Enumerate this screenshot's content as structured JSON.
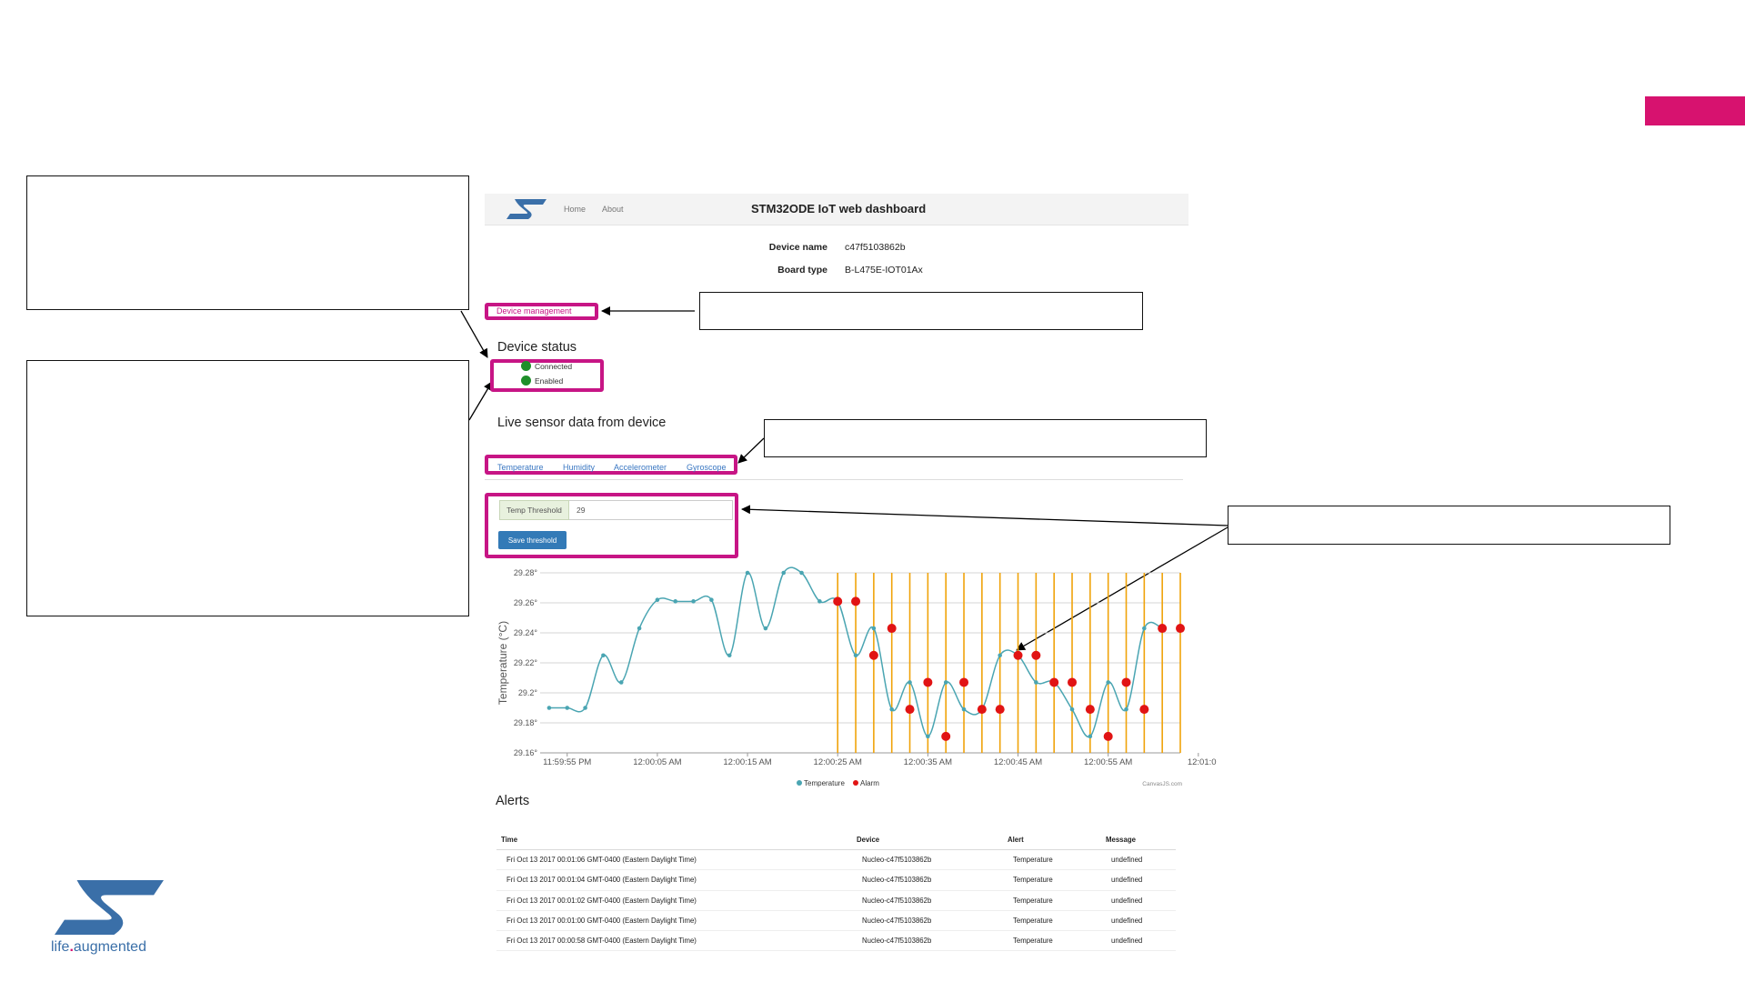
{
  "dashboard": {
    "nav": {
      "home": "Home",
      "about": "About"
    },
    "title": "STM32ODE IoT web dashboard"
  },
  "device_info": {
    "name_label": "Device name",
    "name_value": "c47f5103862b",
    "board_label": "Board type",
    "board_value": "B-L475E-IOT01Ax"
  },
  "device_management_link": "Device management",
  "device_status": {
    "heading": "Device status",
    "items": [
      "Connected",
      "Enabled"
    ],
    "color": "#1f8f2a"
  },
  "live_sensor": {
    "heading": "Live sensor data from device",
    "tabs": [
      "Temperature",
      "Humidity",
      "Accelerometer",
      "Gyroscope"
    ]
  },
  "threshold": {
    "label": "Temp Threshold",
    "value": "29",
    "button": "Save threshold"
  },
  "chart_data": {
    "type": "line",
    "ylabel": "Temperature (°C)",
    "ylim": [
      29.16,
      29.28
    ],
    "xlim": [
      "11:59:52 PM",
      "12:01:03 AM"
    ],
    "yticks": [
      "29.16°",
      "29.18°",
      "29.2°",
      "29.22°",
      "29.24°",
      "29.26°",
      "29.28°"
    ],
    "xticks": [
      "11:59:55 PM",
      "12:00:05 AM",
      "12:00:15 AM",
      "12:00:25 AM",
      "12:00:35 AM",
      "12:00:45 AM",
      "12:00:55 AM",
      "12:01:0"
    ],
    "credit": "CanvasJS.com",
    "series": [
      {
        "name": "Temperature",
        "color": "#4aa5b2",
        "x": [
          "11:59:53 PM",
          "11:59:55 PM",
          "11:59:57 PM",
          "11:59:59 PM",
          "12:00:01 AM",
          "12:00:03 AM",
          "12:00:05 AM",
          "12:00:07 AM",
          "12:00:09 AM",
          "12:00:11 AM",
          "12:00:13 AM",
          "12:00:15 AM",
          "12:00:17 AM",
          "12:00:19 AM",
          "12:00:21 AM",
          "12:00:23 AM",
          "12:00:25 AM",
          "12:00:27 AM",
          "12:00:29 AM",
          "12:00:31 AM",
          "12:00:33 AM",
          "12:00:35 AM",
          "12:00:37 AM",
          "12:00:39 AM",
          "12:00:41 AM",
          "12:00:43 AM",
          "12:00:45 AM",
          "12:00:47 AM",
          "12:00:49 AM",
          "12:00:51 AM",
          "12:00:53 AM",
          "12:00:55 AM",
          "12:00:57 AM",
          "12:00:59 AM",
          "12:01:01 AM"
        ],
        "y": [
          29.19,
          29.19,
          29.19,
          29.225,
          29.207,
          29.243,
          29.262,
          29.261,
          29.261,
          29.262,
          29.225,
          29.28,
          29.243,
          29.28,
          29.28,
          29.261,
          29.261,
          29.225,
          29.243,
          29.189,
          29.207,
          29.171,
          29.207,
          29.189,
          29.189,
          29.225,
          29.225,
          29.207,
          29.207,
          29.189,
          29.171,
          29.207,
          29.189,
          29.243,
          29.243
        ]
      },
      {
        "name": "Alarm",
        "color": "#e11414",
        "x": [
          "12:00:25 AM",
          "12:00:27 AM",
          "12:00:29 AM",
          "12:00:31 AM",
          "12:00:33 AM",
          "12:00:35 AM",
          "12:00:37 AM",
          "12:00:39 AM",
          "12:00:41 AM",
          "12:00:43 AM",
          "12:00:45 AM",
          "12:00:47 AM",
          "12:00:49 AM",
          "12:00:51 AM",
          "12:00:53 AM",
          "12:00:55 AM",
          "12:00:57 AM",
          "12:00:59 AM",
          "12:01:01 AM",
          "12:01:03 AM"
        ],
        "y": [
          29.261,
          29.261,
          29.225,
          29.243,
          29.189,
          29.207,
          29.171,
          29.207,
          29.189,
          29.189,
          29.225,
          29.225,
          29.207,
          29.207,
          29.189,
          29.171,
          29.207,
          29.189,
          29.243,
          29.243
        ]
      }
    ]
  },
  "alerts": {
    "heading": "Alerts",
    "columns": [
      "Time",
      "Device",
      "Alert",
      "Message"
    ],
    "rows": [
      [
        "Fri Oct 13 2017 00:01:06 GMT-0400 (Eastern Daylight Time)",
        "Nucleo-c47f5103862b",
        "Temperature",
        "undefined"
      ],
      [
        "Fri Oct 13 2017 00:01:04 GMT-0400 (Eastern Daylight Time)",
        "Nucleo-c47f5103862b",
        "Temperature",
        "undefined"
      ],
      [
        "Fri Oct 13 2017 00:01:02 GMT-0400 (Eastern Daylight Time)",
        "Nucleo-c47f5103862b",
        "Temperature",
        "undefined"
      ],
      [
        "Fri Oct 13 2017 00:01:00 GMT-0400 (Eastern Daylight Time)",
        "Nucleo-c47f5103862b",
        "Temperature",
        "undefined"
      ],
      [
        "Fri Oct 13 2017 00:00:58 GMT-0400 (Eastern Daylight Time)",
        "Nucleo-c47f5103862b",
        "Temperature",
        "undefined"
      ]
    ]
  },
  "footer_logo": {
    "tagline_1": "life",
    "tagline_dot": ".",
    "tagline_2": "augmented",
    "color": "#3a6fa8"
  },
  "accent_color": "#d7126f",
  "highlight_color": "#c71585"
}
